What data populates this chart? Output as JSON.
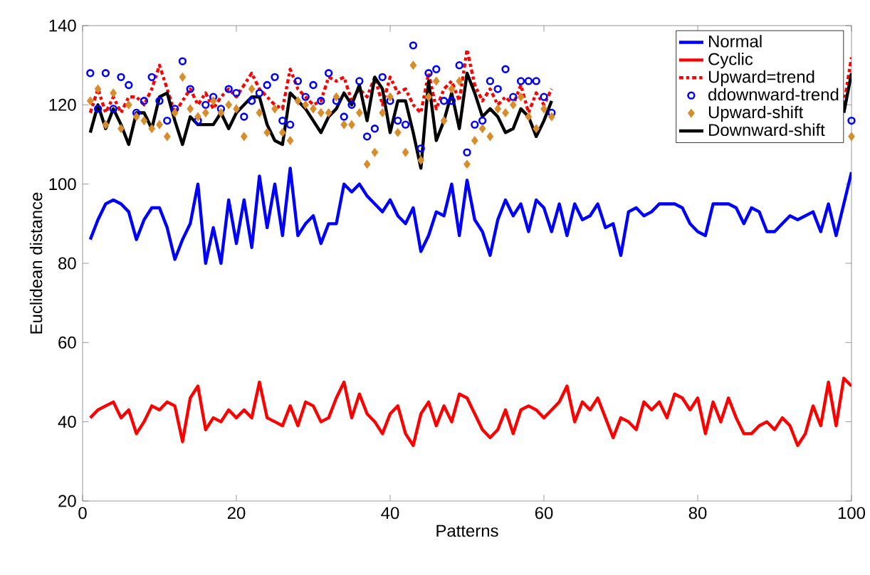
{
  "chart_data": {
    "type": "line",
    "xlabel": "Patterns",
    "ylabel": "Euclidean distance",
    "x": [
      1,
      2,
      3,
      4,
      5,
      6,
      7,
      8,
      9,
      10,
      11,
      12,
      13,
      14,
      15,
      16,
      17,
      18,
      19,
      20,
      21,
      22,
      23,
      24,
      25,
      26,
      27,
      28,
      29,
      30,
      31,
      32,
      33,
      34,
      35,
      36,
      37,
      38,
      39,
      40,
      41,
      42,
      43,
      44,
      45,
      46,
      47,
      48,
      49,
      50,
      51,
      52,
      53,
      54,
      55,
      56,
      57,
      58,
      59,
      60,
      61,
      62,
      63,
      64,
      65,
      66,
      67,
      68,
      69,
      70,
      71,
      72,
      73,
      74,
      75,
      76,
      77,
      78,
      79,
      80,
      81,
      82,
      83,
      84,
      85,
      86,
      87,
      88,
      89,
      90,
      91,
      92,
      93,
      94,
      95,
      96,
      97,
      98,
      99,
      100
    ],
    "series": [
      {
        "name": "Normal",
        "color": "#0000ff",
        "values": [
          86,
          91,
          95,
          96,
          95,
          93,
          86,
          91,
          94,
          94,
          89,
          81,
          86,
          90,
          100,
          80,
          89,
          80,
          96,
          85,
          96,
          84,
          102,
          89,
          100,
          87,
          104,
          87,
          90,
          92,
          85,
          90,
          90,
          100,
          98,
          100,
          97,
          95,
          93,
          96,
          92,
          90,
          94,
          83,
          87,
          93,
          92,
          100,
          87,
          101,
          91,
          88,
          82,
          91,
          96,
          92,
          95,
          88,
          96,
          94,
          88,
          95,
          87,
          95,
          91,
          92,
          95,
          89,
          90,
          82,
          93,
          94,
          92,
          93,
          95,
          95,
          95,
          94,
          90,
          88,
          87,
          95,
          95,
          95,
          94,
          90,
          94,
          93,
          88,
          88,
          90,
          92,
          91,
          92,
          93,
          88,
          95,
          87,
          95,
          103
        ]
      },
      {
        "name": "Cyclic",
        "color": "#ff0000",
        "values": [
          41,
          43,
          44,
          45,
          41,
          43,
          37,
          40,
          44,
          43,
          45,
          44,
          35,
          46,
          49,
          38,
          41,
          40,
          43,
          41,
          43,
          41,
          50,
          41,
          40,
          39,
          44,
          39,
          45,
          44,
          40,
          41,
          46,
          50,
          41,
          47,
          42,
          40,
          37,
          42,
          44,
          37,
          34,
          42,
          45,
          39,
          44,
          40,
          47,
          46,
          42,
          38,
          36,
          38,
          43,
          37,
          43,
          44,
          43,
          41,
          43,
          45,
          49,
          40,
          45,
          43,
          46,
          41,
          36,
          41,
          40,
          38,
          45,
          43,
          45,
          41,
          47,
          46,
          43,
          46,
          37,
          45,
          40,
          46,
          41,
          37,
          37,
          39,
          40,
          38,
          41,
          39,
          34,
          37,
          44,
          39,
          50,
          39,
          51,
          49
        ]
      },
      {
        "name": "Upward=trend",
        "color": "#ff0000",
        "line_style": "dashdot",
        "values": [
          118,
          124,
          118,
          122,
          118,
          122,
          122,
          120,
          124,
          130,
          124,
          118,
          121,
          124,
          120,
          123,
          119,
          122,
          124,
          122,
          125,
          128,
          124,
          122,
          120,
          119,
          129,
          124,
          122,
          120,
          121,
          127,
          126,
          127,
          121,
          124,
          122,
          127,
          120,
          127,
          123,
          124,
          120,
          118,
          128,
          119,
          124,
          126,
          121,
          134,
          125,
          121,
          124,
          120,
          122,
          120,
          125,
          118,
          123,
          120,
          124,
          null,
          null,
          null,
          null,
          null,
          null,
          null,
          null,
          null,
          null,
          null,
          null,
          null,
          null,
          null,
          null,
          null,
          null,
          null,
          null,
          null,
          null,
          null,
          null,
          null,
          null,
          null,
          null,
          null,
          null,
          null,
          null,
          null,
          null,
          null,
          null,
          null,
          120,
          132
        ]
      },
      {
        "name": "ddownward-trend",
        "color": "#0000ff",
        "type": "scatter",
        "marker": "circle",
        "values": [
          128,
          119,
          128,
          119,
          127,
          125,
          118,
          121,
          127,
          121,
          116,
          119,
          131,
          124,
          116,
          120,
          122,
          119,
          124,
          123,
          117,
          121,
          123,
          125,
          127,
          116,
          115,
          126,
          122,
          125,
          121,
          128,
          121,
          117,
          120,
          126,
          112,
          114,
          127,
          121,
          116,
          115,
          135,
          109,
          128,
          129,
          121,
          121,
          130,
          108,
          115,
          116,
          126,
          124,
          129,
          122,
          126,
          126,
          126,
          122,
          118,
          null,
          null,
          null,
          null,
          null,
          null,
          null,
          null,
          null,
          null,
          null,
          null,
          null,
          null,
          null,
          null,
          null,
          null,
          null,
          null,
          null,
          null,
          null,
          null,
          null,
          null,
          null,
          null,
          null,
          null,
          null,
          null,
          null,
          null,
          null,
          null,
          null,
          null,
          116
        ]
      },
      {
        "name": "Upward-shift",
        "color": "#d98c2b",
        "type": "scatter",
        "marker": "diamond",
        "values": [
          121,
          124,
          115,
          123,
          114,
          120,
          117,
          116,
          114,
          115,
          112,
          118,
          127,
          119,
          117,
          118,
          121,
          118,
          120,
          119,
          112,
          124,
          118,
          113,
          119,
          113,
          111,
          121,
          120,
          119,
          118,
          118,
          122,
          115,
          115,
          118,
          105,
          108,
          118,
          122,
          113,
          108,
          130,
          106,
          122,
          126,
          116,
          124,
          126,
          105,
          111,
          114,
          112,
          119,
          118,
          120,
          122,
          117,
          114,
          119,
          117,
          null,
          null,
          null,
          null,
          null,
          null,
          null,
          null,
          null,
          null,
          null,
          null,
          null,
          null,
          null,
          null,
          null,
          null,
          null,
          null,
          null,
          null,
          null,
          null,
          null,
          null,
          null,
          null,
          null,
          null,
          null,
          null,
          null,
          null,
          null,
          null,
          null,
          null,
          112
        ]
      },
      {
        "name": "Downward-shift",
        "color": "#000000",
        "values": [
          113,
          120,
          114,
          119,
          115,
          110,
          118,
          118,
          114,
          122,
          123,
          116,
          110,
          117,
          115,
          115,
          115,
          118,
          114,
          118,
          120,
          122,
          122,
          115,
          111,
          110,
          123,
          121,
          119,
          116,
          113,
          117,
          119,
          123,
          120,
          125,
          116,
          127,
          124,
          113,
          121,
          121,
          113,
          104,
          126,
          111,
          116,
          123,
          114,
          128,
          123,
          117,
          119,
          117,
          113,
          114,
          119,
          117,
          112,
          116,
          121,
          null,
          null,
          null,
          null,
          null,
          null,
          null,
          null,
          null,
          null,
          null,
          null,
          null,
          null,
          null,
          null,
          null,
          null,
          null,
          null,
          null,
          null,
          null,
          null,
          null,
          null,
          null,
          null,
          null,
          null,
          null,
          null,
          null,
          null,
          null,
          null,
          null,
          118,
          128
        ]
      }
    ],
    "xlim": [
      0,
      100
    ],
    "xticks": [
      0,
      20,
      40,
      60,
      80,
      100
    ],
    "ylim": [
      20,
      140
    ],
    "yticks": [
      20,
      40,
      60,
      80,
      100,
      120,
      140
    ],
    "grid": false,
    "legend": "top right"
  }
}
